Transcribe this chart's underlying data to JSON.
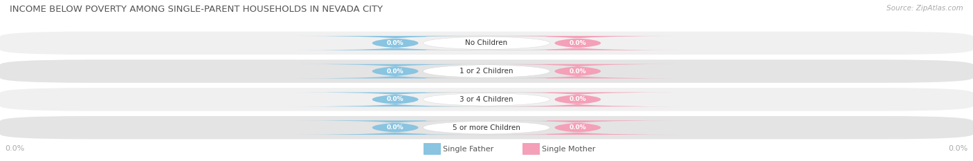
{
  "title": "INCOME BELOW POVERTY AMONG SINGLE-PARENT HOUSEHOLDS IN NEVADA CITY",
  "source": "Source: ZipAtlas.com",
  "categories": [
    "No Children",
    "1 or 2 Children",
    "3 or 4 Children",
    "5 or more Children"
  ],
  "father_values": [
    0.0,
    0.0,
    0.0,
    0.0
  ],
  "mother_values": [
    0.0,
    0.0,
    0.0,
    0.0
  ],
  "father_color": "#89c4e1",
  "mother_color": "#f4a0b8",
  "row_bg_light": "#f0f0f0",
  "row_bg_dark": "#e4e4e4",
  "title_color": "#555555",
  "label_color": "#555555",
  "value_text_color": "#ffffff",
  "category_text_color": "#333333",
  "axis_label_color": "#aaaaaa",
  "legend_text_color": "#555555",
  "figsize": [
    14.06,
    2.33
  ],
  "dpi": 100
}
